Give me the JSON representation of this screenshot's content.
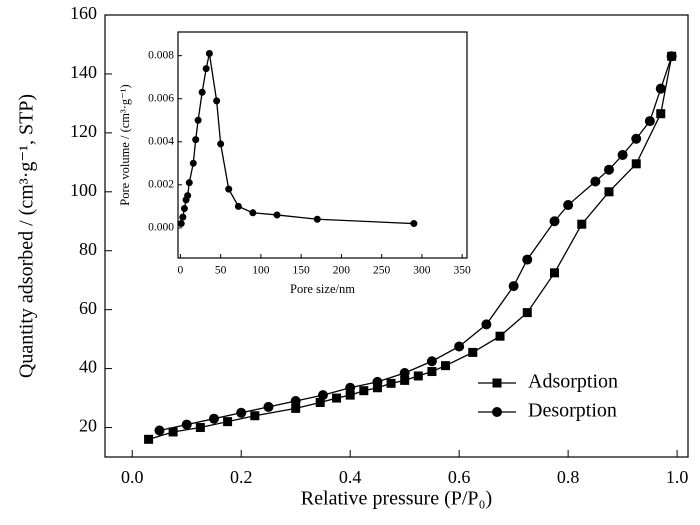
{
  "chart_data": [
    {
      "type": "line",
      "xlabel": "Relative pressure (P/P₀)",
      "ylabel": "Quantity adsorbed / (cm³·g⁻¹, STP)",
      "xlim": [
        -0.05,
        1.02
      ],
      "ylim": [
        10,
        160
      ],
      "xticks": [
        {
          "value": 0,
          "label": "0.0"
        },
        0.2,
        0.4,
        0.6,
        0.8,
        {
          "value": 1,
          "label": "1.0"
        }
      ],
      "yticks": [
        20,
        40,
        60,
        80,
        100,
        120,
        140,
        160
      ],
      "legend": "lower right",
      "series": [
        {
          "name": "Adsorption",
          "color": "#000000",
          "marker": "square",
          "x": [
            0.03,
            0.075,
            0.125,
            0.175,
            0.225,
            0.3,
            0.345,
            0.375,
            0.4,
            0.425,
            0.45,
            0.475,
            0.5,
            0.525,
            0.55,
            0.575,
            0.625,
            0.675,
            0.725,
            0.775,
            0.825,
            0.875,
            0.925,
            0.97,
            0.99
          ],
          "values": [
            16,
            18.5,
            20,
            22,
            24,
            26.5,
            28.5,
            30,
            31,
            32.5,
            33.5,
            35,
            36,
            37.5,
            39,
            41,
            45.5,
            51,
            59,
            72.5,
            89,
            100,
            109.5,
            126.5,
            146
          ]
        },
        {
          "name": "Desorption",
          "color": "#000000",
          "marker": "circle",
          "x": [
            0.05,
            0.1,
            0.15,
            0.2,
            0.25,
            0.3,
            0.35,
            0.4,
            0.45,
            0.5,
            0.55,
            0.6,
            0.65,
            0.7,
            0.725,
            0.775,
            0.8,
            0.85,
            0.875,
            0.9,
            0.925,
            0.95,
            0.97,
            0.99
          ],
          "values": [
            19,
            21,
            23,
            25,
            27,
            29,
            31,
            33.5,
            35.5,
            38.5,
            42.5,
            47.5,
            55,
            68,
            77,
            90,
            95.5,
            103.5,
            107.5,
            112.5,
            118,
            124,
            135,
            146
          ]
        }
      ]
    },
    {
      "type": "line",
      "xlabel": "Pore size/nm",
      "ylabel": "Pore volume / (cm³·g⁻¹)",
      "xlim": [
        -3,
        356
      ],
      "ylim": [
        -0.0014,
        0.0091
      ],
      "xticks": [
        0,
        50,
        100,
        150,
        200,
        250,
        300,
        350
      ],
      "yticks": [
        {
          "value": 0,
          "label": "0.000"
        },
        0.002,
        0.004,
        0.006,
        0.008
      ],
      "series": [
        {
          "color": "#000000",
          "marker": "circle",
          "x": [
            1,
            3,
            5,
            7,
            9,
            11,
            16,
            19,
            22,
            27,
            32,
            36,
            45,
            50,
            60,
            72,
            90,
            120,
            170,
            290
          ],
          "values": [
            0.0002,
            0.0005,
            0.0009,
            0.0013,
            0.0015,
            0.0021,
            0.003,
            0.0041,
            0.005,
            0.0063,
            0.0074,
            0.0081,
            0.0059,
            0.0039,
            0.0018,
            0.001,
            0.0007,
            0.0006,
            0.0004,
            0.0002
          ]
        }
      ]
    }
  ]
}
